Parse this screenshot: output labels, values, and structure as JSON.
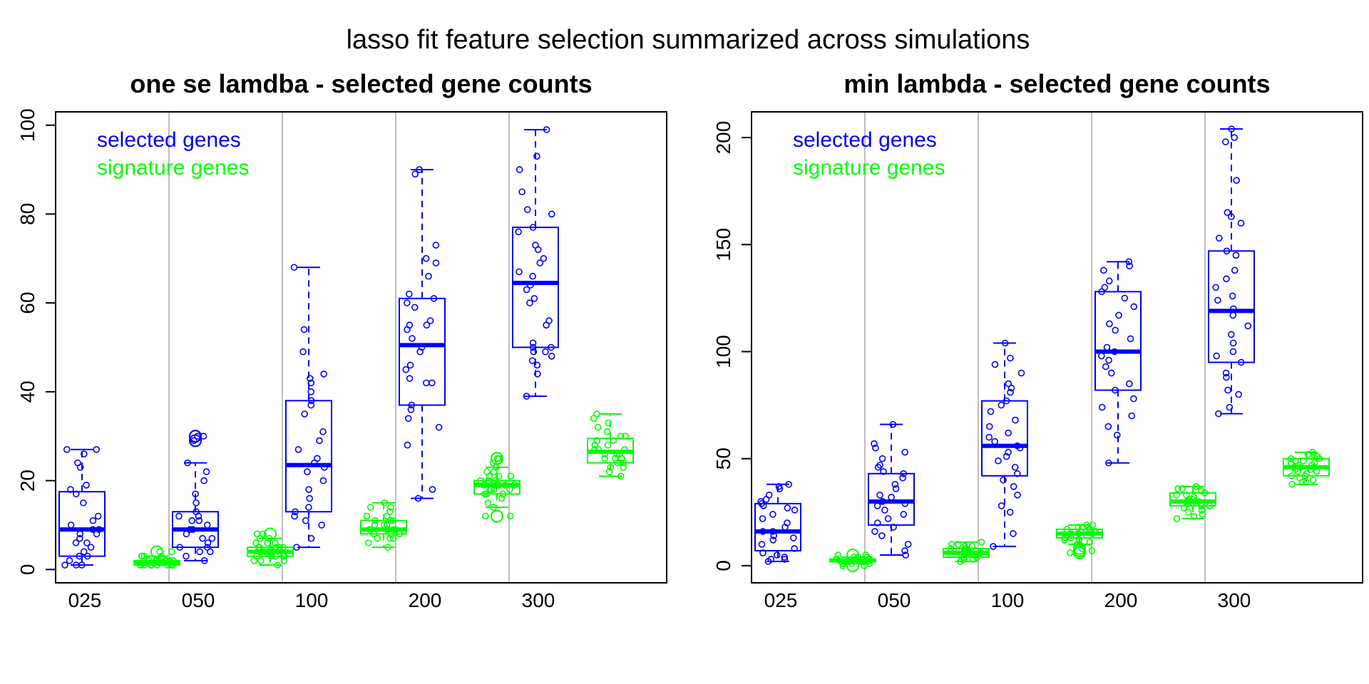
{
  "figure_title": "lasso fit feature selection summarized across simulations",
  "colors": {
    "selected": "#0000ff",
    "signature": "#00ff00",
    "separator": "#bebebe",
    "axis": "#000000"
  },
  "chart_data": [
    {
      "type": "box",
      "title": "one se lamdba - selected gene counts",
      "xlabel": "",
      "ylabel": "",
      "categories": [
        "025",
        "050",
        "100",
        "200",
        "300"
      ],
      "ylim": [
        -3,
        103
      ],
      "yticks": [
        0,
        20,
        40,
        60,
        80,
        100
      ],
      "legend": {
        "position": "top-left",
        "entries": [
          "selected genes",
          "signature genes"
        ]
      },
      "series": [
        {
          "name": "selected genes",
          "boxes": [
            {
              "min": 1,
              "q1": 3,
              "median": 9,
              "q3": 17.5,
              "max": 27,
              "points": [
                27,
                27,
                26,
                24,
                23,
                19,
                18,
                17,
                15,
                12,
                11,
                10,
                9,
                9,
                8,
                8,
                7,
                6,
                6,
                5,
                4,
                3,
                3,
                2,
                1,
                1,
                1
              ]
            },
            {
              "min": 2,
              "q1": 5,
              "median": 9,
              "q3": 13,
              "max": 24,
              "points": [
                30,
                30,
                29,
                24,
                22,
                20,
                17,
                15,
                13,
                12,
                12,
                11,
                11,
                10,
                9,
                9,
                8,
                7,
                7,
                6,
                5,
                5,
                4,
                4,
                3,
                2
              ],
              "outliers": [
                30,
                30,
                29
              ]
            },
            {
              "min": 5,
              "q1": 13,
              "median": 23.5,
              "q3": 38,
              "max": 68,
              "points": [
                68,
                54,
                49,
                44,
                43,
                42,
                40,
                38,
                37,
                35,
                31,
                29,
                27,
                25,
                24,
                23,
                22,
                20,
                18,
                16,
                14,
                13,
                12,
                11,
                10,
                7,
                5
              ]
            },
            {
              "min": 16,
              "q1": 37,
              "median": 50.5,
              "q3": 61,
              "max": 90,
              "points": [
                90,
                89,
                73,
                70,
                69,
                66,
                62,
                61,
                60,
                59,
                56,
                55,
                55,
                54,
                52,
                50,
                49,
                46,
                45,
                43,
                42,
                42,
                37,
                36,
                34,
                32,
                28,
                18,
                16
              ]
            },
            {
              "min": 39,
              "q1": 50,
              "median": 64.5,
              "q3": 77,
              "max": 99,
              "points": [
                99,
                93,
                90,
                85,
                81,
                80,
                77,
                76,
                73,
                72,
                70,
                69,
                67,
                66,
                64,
                63,
                61,
                60,
                56,
                55,
                51,
                50,
                50,
                49,
                49,
                48,
                47,
                46,
                44,
                39
              ]
            }
          ]
        },
        {
          "name": "signature genes",
          "boxes": [
            {
              "min": 1,
              "q1": 1,
              "median": 1.5,
              "q3": 2,
              "max": 3,
              "points": [
                4,
                4,
                3,
                3,
                3,
                3,
                2,
                2,
                2,
                2,
                2,
                2,
                2,
                1,
                1,
                1,
                1,
                1,
                1,
                1,
                1,
                1,
                1,
                1
              ],
              "outliers": [
                4
              ]
            },
            {
              "min": 1,
              "q1": 3,
              "median": 4,
              "q3": 5,
              "max": 7,
              "points": [
                8,
                8,
                7,
                7,
                6,
                6,
                6,
                5,
                5,
                5,
                5,
                5,
                4,
                4,
                4,
                4,
                4,
                4,
                3,
                3,
                3,
                3,
                3,
                2,
                2,
                2,
                1
              ],
              "outliers": [
                8
              ]
            },
            {
              "min": 5,
              "q1": 8,
              "median": 9,
              "q3": 11,
              "max": 15,
              "points": [
                15,
                14,
                14,
                13,
                12,
                12,
                11,
                11,
                11,
                10,
                10,
                10,
                9,
                9,
                9,
                9,
                9,
                8,
                8,
                8,
                8,
                7,
                7,
                7,
                6,
                5
              ]
            },
            {
              "min": 14,
              "q1": 17,
              "median": 19,
              "q3": 20,
              "max": 23,
              "points": [
                25,
                25,
                24,
                23,
                22,
                22,
                21,
                21,
                21,
                20,
                20,
                20,
                19,
                19,
                19,
                19,
                19,
                18,
                18,
                18,
                18,
                17,
                17,
                17,
                16,
                15,
                14,
                12,
                12
              ],
              "outliers": [
                25,
                25,
                12,
                12
              ]
            },
            {
              "min": 21,
              "q1": 24,
              "median": 26.5,
              "q3": 29.5,
              "max": 35,
              "points": [
                35,
                34,
                33,
                32,
                31,
                30,
                30,
                29,
                29,
                28,
                28,
                27,
                27,
                27,
                26,
                26,
                26,
                25,
                25,
                25,
                24,
                24,
                24,
                23,
                23,
                22,
                21
              ]
            }
          ]
        }
      ]
    },
    {
      "type": "box",
      "title": "min lambda - selected gene counts",
      "xlabel": "",
      "ylabel": "",
      "categories": [
        "025",
        "050",
        "100",
        "200",
        "300"
      ],
      "ylim": [
        -8,
        212
      ],
      "yticks": [
        0,
        50,
        100,
        150,
        200
      ],
      "legend": {
        "position": "top-left",
        "entries": [
          "selected genes",
          "signature genes"
        ]
      },
      "series": [
        {
          "name": "selected genes",
          "boxes": [
            {
              "min": 2,
              "q1": 7,
              "median": 16,
              "q3": 29,
              "max": 38,
              "points": [
                38,
                37,
                36,
                33,
                31,
                30,
                29,
                28,
                27,
                26,
                24,
                22,
                20,
                18,
                16,
                16,
                14,
                13,
                12,
                10,
                8,
                6,
                5,
                4,
                3,
                3,
                2
              ]
            },
            {
              "min": 5,
              "q1": 19,
              "median": 30,
              "q3": 43,
              "max": 66,
              "points": [
                66,
                57,
                55,
                53,
                50,
                47,
                46,
                44,
                43,
                41,
                38,
                36,
                33,
                32,
                30,
                29,
                28,
                26,
                24,
                22,
                20,
                18,
                16,
                14,
                10,
                7,
                5
              ]
            },
            {
              "min": 9,
              "q1": 42,
              "median": 56,
              "q3": 77,
              "max": 104,
              "points": [
                104,
                97,
                94,
                90,
                85,
                83,
                81,
                77,
                75,
                72,
                68,
                65,
                62,
                60,
                58,
                56,
                55,
                53,
                51,
                49,
                46,
                43,
                40,
                37,
                33,
                28,
                25,
                15,
                9
              ]
            },
            {
              "min": 48,
              "q1": 82,
              "median": 100,
              "q3": 128,
              "max": 142,
              "points": [
                142,
                140,
                138,
                133,
                130,
                128,
                125,
                121,
                117,
                113,
                110,
                106,
                102,
                100,
                98,
                96,
                93,
                90,
                85,
                82,
                78,
                74,
                70,
                65,
                61,
                48
              ]
            },
            {
              "min": 71,
              "q1": 95,
              "median": 119,
              "q3": 147,
              "max": 204,
              "points": [
                204,
                200,
                198,
                180,
                165,
                163,
                160,
                153,
                147,
                145,
                138,
                134,
                130,
                126,
                124,
                120,
                117,
                112,
                108,
                104,
                100,
                98,
                95,
                90,
                88,
                82,
                80,
                74,
                71
              ]
            }
          ]
        },
        {
          "name": "signature genes",
          "boxes": [
            {
              "min": 1,
              "q1": 2,
              "median": 2.5,
              "q3": 3,
              "max": 4,
              "points": [
                5,
                5,
                4,
                4,
                4,
                3,
                3,
                3,
                3,
                3,
                3,
                2,
                2,
                2,
                2,
                2,
                2,
                2,
                2,
                1,
                1,
                1,
                0,
                0
              ],
              "outliers": [
                5,
                0
              ]
            },
            {
              "min": 2,
              "q1": 4,
              "median": 6,
              "q3": 8,
              "max": 11,
              "points": [
                11,
                10,
                10,
                9,
                9,
                8,
                8,
                8,
                7,
                7,
                7,
                6,
                6,
                6,
                6,
                5,
                5,
                5,
                4,
                4,
                4,
                3,
                3,
                3,
                2
              ]
            },
            {
              "min": 10,
              "q1": 13,
              "median": 15,
              "q3": 17,
              "max": 19,
              "points": [
                19,
                19,
                18,
                18,
                18,
                17,
                17,
                16,
                16,
                16,
                15,
                15,
                15,
                15,
                14,
                14,
                14,
                13,
                13,
                12,
                12,
                11,
                10,
                8,
                7,
                6
              ],
              "outliers": [
                8,
                7,
                6
              ]
            },
            {
              "min": 22,
              "q1": 28,
              "median": 30,
              "q3": 34,
              "max": 37,
              "points": [
                37,
                36,
                36,
                35,
                34,
                33,
                33,
                32,
                31,
                31,
                30,
                30,
                30,
                30,
                29,
                29,
                28,
                28,
                27,
                26,
                25,
                24,
                23,
                22
              ]
            },
            {
              "min": 38,
              "q1": 42,
              "median": 46,
              "q3": 50,
              "max": 53,
              "points": [
                53,
                52,
                52,
                51,
                50,
                50,
                49,
                49,
                48,
                48,
                47,
                47,
                46,
                46,
                46,
                45,
                45,
                44,
                44,
                43,
                42,
                42,
                41,
                40,
                39,
                39,
                38
              ]
            }
          ]
        }
      ]
    }
  ]
}
